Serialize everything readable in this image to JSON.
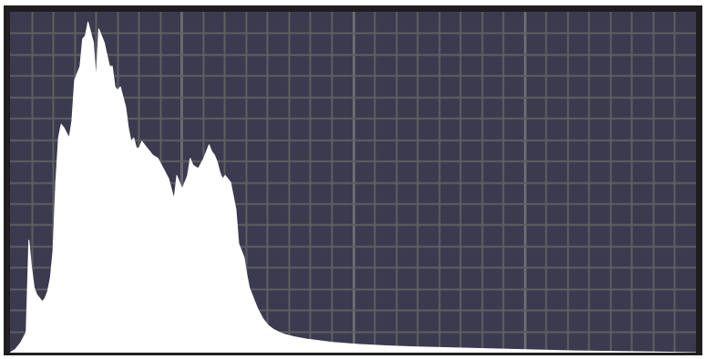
{
  "colors": {
    "background": "#3b3a4e",
    "grid_line": "#5e5e63",
    "grid_line_major": "#6a6a6e",
    "fill": "#ffffff",
    "frame": "#1f1d20"
  },
  "chart_data": {
    "type": "area",
    "title": "",
    "xlabel": "",
    "ylabel": "",
    "grid": true,
    "grid_columns": 32,
    "grid_rows": 16,
    "xlim": [
      0,
      255
    ],
    "ylim": [
      0,
      100
    ],
    "series": [
      {
        "x": [
          0,
          2,
          4,
          6,
          7,
          8,
          9,
          10,
          11,
          12,
          13,
          14,
          15,
          16,
          17,
          18,
          19,
          20,
          22,
          23,
          24,
          26,
          27,
          28,
          29,
          31,
          32,
          33,
          35,
          37,
          38,
          39,
          40,
          41,
          43,
          44,
          45,
          46,
          47,
          48,
          49,
          50,
          52,
          53,
          55,
          57,
          59,
          61,
          62,
          64,
          66,
          67,
          68,
          70,
          72,
          74,
          75,
          76,
          77,
          78,
          79,
          80,
          82,
          84,
          85,
          87,
          88,
          89,
          90,
          91,
          92,
          93,
          94,
          95,
          96,
          97,
          98,
          100,
          102,
          104,
          106,
          108,
          110,
          112,
          115,
          118,
          120,
          125,
          130,
          140,
          150,
          160,
          170,
          180,
          190,
          200,
          210,
          220,
          230,
          240,
          255
        ],
        "values": [
          0,
          1,
          3,
          6,
          33,
          25,
          19,
          17,
          16,
          15,
          16,
          18,
          22,
          30,
          50,
          63,
          67,
          66,
          63,
          68,
          80,
          84,
          92,
          93,
          97,
          91,
          80,
          95,
          91,
          84,
          84,
          78,
          77,
          78,
          72,
          66,
          62,
          63,
          60,
          60,
          62,
          61,
          59,
          58,
          57,
          54,
          51,
          45,
          52,
          48,
          52,
          57,
          55,
          54,
          57,
          61,
          59,
          58,
          56,
          53,
          51,
          52,
          50,
          42,
          32,
          28,
          23,
          19,
          17,
          15,
          13,
          11.5,
          10,
          9,
          8,
          7.4,
          6.8,
          6,
          5.4,
          5,
          4.6,
          4.3,
          4,
          3.8,
          3.5,
          3.2,
          3,
          2.7,
          2.4,
          2,
          1.7,
          1.5,
          1.3,
          1.1,
          0.9,
          0.7,
          0.5,
          0.4,
          0.3,
          0.2,
          0
        ]
      }
    ]
  }
}
